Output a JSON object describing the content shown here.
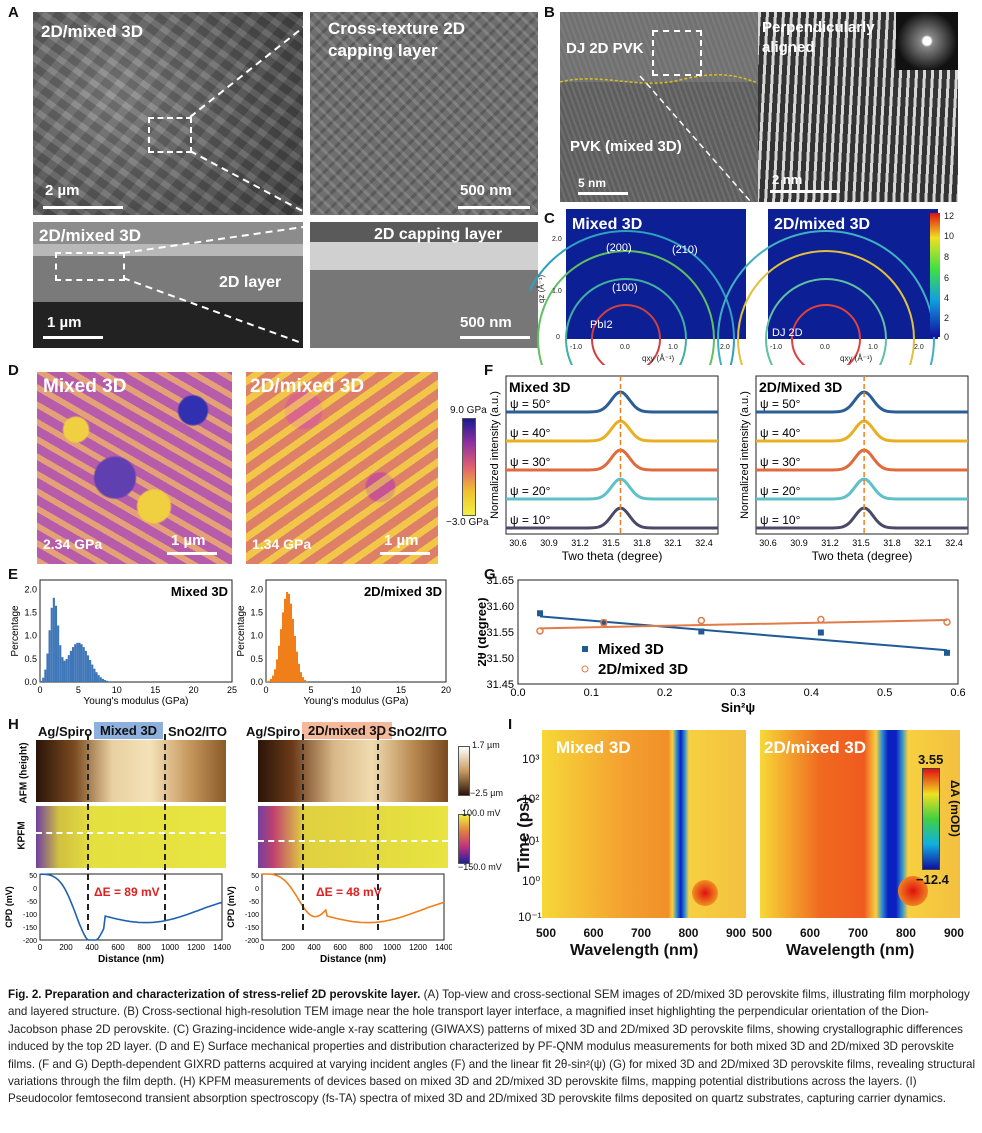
{
  "panel_labels": {
    "A": "A",
    "B": "B",
    "C": "C",
    "D": "D",
    "E": "E",
    "F": "F",
    "G": "G",
    "H": "H",
    "I": "I"
  },
  "A": {
    "tl_title": "2D/mixed 3D",
    "tl_scale": "2 µm",
    "tr_title": "Cross-texture 2D capping layer",
    "tr_scale": "500 nm",
    "bl_title": "2D/mixed 3D",
    "bl_note": "2D layer",
    "bl_scale": "1 µm",
    "br_note": "2D capping layer",
    "br_scale": "500 nm"
  },
  "B": {
    "label_top": "DJ 2D PVK",
    "label_bottom": "PVK (mixed 3D)",
    "scale_left": "5 nm",
    "inset_title": "Perpendicularly aligned",
    "scale_right": "2 nm"
  },
  "C": {
    "left_title": "Mixed 3D",
    "right_title": "2D/mixed 3D",
    "ring_labels": [
      "(200)",
      "(210)",
      "(100)"
    ],
    "pbi2": "PbI2",
    "dj2d": "DJ 2D",
    "ylabel": "qz (Å⁻¹)",
    "xlabel": "qxy (Å⁻¹)",
    "xticks": [
      "-1.0",
      "-0.5",
      "0.0",
      "0.5",
      "1.0",
      "1.5",
      "2.0"
    ],
    "yticks": [
      "0",
      "0.5",
      "1.0",
      "1.5",
      "2.0"
    ],
    "colorbar_ticks": [
      "12",
      "10",
      "8",
      "6",
      "4",
      "2",
      "0"
    ]
  },
  "D": {
    "left_title": "Mixed 3D",
    "right_title": "2D/mixed 3D",
    "left_value": "2.34 GPa",
    "right_value": "1.34 GPa",
    "scale": "1 µm",
    "cb_max": "9.0 GPa",
    "cb_min": "−3.0 GPa"
  },
  "F": {
    "left_title": "Mixed 3D",
    "right_title": "2D/Mixed 3D",
    "psi": [
      "ψ = 50°",
      "ψ = 40°",
      "ψ = 30°",
      "ψ = 20°",
      "ψ = 10°"
    ],
    "ylabel": "Normalized intensity (a.u.)",
    "xlabel": "Two theta (degree)",
    "xticks": [
      "30.6",
      "30.9",
      "31.2",
      "31.5",
      "31.8",
      "32.1",
      "32.4"
    ],
    "colors": [
      "#2a5e94",
      "#e8b020",
      "#e06a3c",
      "#5ec0c8",
      "#4a4a68"
    ]
  },
  "H": {
    "left_layers": [
      "Ag/Spiro",
      "Mixed 3D",
      "SnO2/ITO"
    ],
    "right_layers": [
      "Ag/Spiro",
      "2D/mixed 3D",
      "SnO2/ITO"
    ],
    "afm": "AFM (height)",
    "kpfm": "KPFM",
    "afm_max": "1.7 µm",
    "afm_min": "−2.5 µm",
    "kpfm_max": "100.0 mV",
    "kpfm_min": "−150.0 mV",
    "left_de": "ΔE = 89 mV",
    "right_de": "ΔE = 48 mV",
    "ylabel": "CPD (mV)",
    "xlabel": "Distance (nm)",
    "xticks": [
      "0",
      "200",
      "400",
      "600",
      "800",
      "1000",
      "1200",
      "1400"
    ],
    "yticks": [
      "50",
      "0",
      "-50",
      "-100",
      "-150",
      "-200"
    ]
  },
  "I": {
    "left_title": "Mixed 3D",
    "right_title": "2D/mixed 3D",
    "ylabel": "Time (ps)",
    "xlabel": "Wavelength (nm)",
    "xticks": [
      "500",
      "600",
      "700",
      "800",
      "900"
    ],
    "yticks": [
      "10³",
      "10²",
      "10¹",
      "10⁰",
      "10⁻¹"
    ],
    "cb_max": "3.55",
    "cb_min": "−12.4",
    "cb_label": "ΔA (mOD)"
  },
  "chart_data": [
    {
      "id": "E-left",
      "type": "bar",
      "title": "Mixed 3D",
      "xlabel": "Young's modulus (GPa)",
      "ylabel": "Percentage",
      "xlim": [
        0,
        25
      ],
      "ylim": [
        0,
        2.2
      ],
      "xticks": [
        0,
        5,
        10,
        15,
        20,
        25
      ],
      "yticks": [
        0.0,
        0.5,
        1.0,
        1.5,
        2.0
      ],
      "color": "#3f76b8",
      "peaks": [
        {
          "x": 1.8,
          "height": 1.75,
          "width": 0.8
        },
        {
          "x": 5.0,
          "height": 0.85,
          "width": 2.0
        }
      ]
    },
    {
      "id": "E-right",
      "type": "bar",
      "title": "2D/mixed 3D",
      "xlabel": "Young's modulus (GPa)",
      "ylabel": "Percentage",
      "xlim": [
        0,
        20
      ],
      "ylim": [
        0,
        2.2
      ],
      "xticks": [
        0,
        5,
        10,
        15,
        20
      ],
      "yticks": [
        0.0,
        0.5,
        1.0,
        1.5,
        2.0
      ],
      "color": "#f07f1a",
      "peaks": [
        {
          "x": 2.4,
          "height": 1.95,
          "width": 1.0
        }
      ]
    },
    {
      "id": "G",
      "type": "scatter",
      "xlabel": "Sin²ψ",
      "ylabel": "2θ (degree)",
      "xlim": [
        0,
        0.6
      ],
      "ylim": [
        31.45,
        31.65
      ],
      "xticks": [
        0.0,
        0.1,
        0.2,
        0.3,
        0.4,
        0.5,
        0.6
      ],
      "yticks": [
        31.45,
        31.5,
        31.55,
        31.6,
        31.65
      ],
      "series": [
        {
          "name": "Mixed 3D",
          "color": "#1f5a96",
          "marker": "square",
          "x": [
            0.03,
            0.117,
            0.25,
            0.413,
            0.585
          ],
          "y": [
            31.586,
            31.568,
            31.551,
            31.549,
            31.51
          ],
          "fit": [
            [
              0.03,
              31.58
            ],
            [
              0.585,
              31.515
            ]
          ]
        },
        {
          "name": "2D/mixed 3D",
          "color": "#e07b4a",
          "marker": "circle",
          "x": [
            0.03,
            0.117,
            0.25,
            0.413,
            0.585
          ],
          "y": [
            31.552,
            31.568,
            31.572,
            31.574,
            31.569
          ],
          "fit": [
            [
              0.03,
              31.557
            ],
            [
              0.585,
              31.573
            ]
          ]
        }
      ]
    },
    {
      "id": "F-peaks",
      "type": "line",
      "left_peak_center": 31.58,
      "right_peak_center": 31.52,
      "xlim": [
        30.5,
        32.5
      ]
    }
  ],
  "caption": {
    "title": "Fig. 2. Preparation and characterization of stress-relief 2D perovskite layer.",
    "body": " (A) Top-view and cross-sectional SEM images of 2D/mixed 3D perovskite films, illustrating film morphology and layered structure. (B) Cross-sectional high-resolution TEM image near the hole transport layer interface, a magnified inset highlighting the perpendicular orientation of the Dion-Jacobson phase 2D perovskite. (C) Grazing-incidence wide-angle x-ray scattering (GIWAXS) patterns of mixed 3D and 2D/mixed 3D perovskite films, showing crystallographic differences induced by the top 2D layer. (D and E) Surface mechanical properties and distribution characterized by PF-QNM modulus measurements for both mixed 3D and 2D/mixed 3D perovskite films. (F and G) Depth-dependent GIXRD patterns acquired at varying incident angles (F) and the linear fit 2θ-sin²(ψ) (G) for mixed 3D and 2D/mixed 3D perovskite films, revealing structural variations through the film depth. (H) KPFM measurements of devices based on mixed 3D and 2D/mixed 3D perovskite films, mapping potential distributions across the layers. (I) Pseudocolor femtosecond transient absorption spectroscopy (fs-TA) spectra of mixed 3D and 2D/mixed 3D perovskite films deposited on quartz substrates, capturing carrier dynamics."
  }
}
